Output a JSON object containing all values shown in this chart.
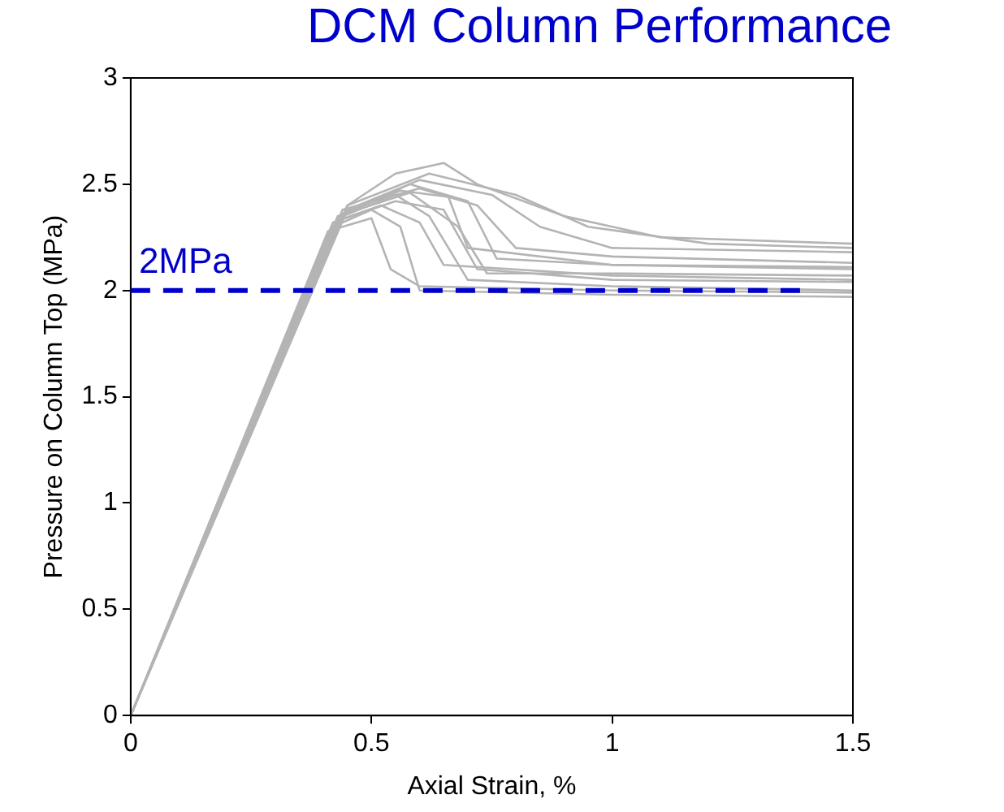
{
  "chart_data": {
    "type": "line",
    "title": "DCM Column Performance",
    "xlabel": "Axial Strain, %",
    "ylabel": "Pressure on Column Top (MPa)",
    "xlim": [
      0,
      1.5
    ],
    "xticks": [
      0,
      0.5,
      1,
      1.5
    ],
    "ylim": [
      0,
      3
    ],
    "yticks": [
      0,
      0.5,
      1,
      1.5,
      2,
      2.5,
      3
    ],
    "grid": false,
    "legend": false,
    "marker": "none",
    "line_style": "solid",
    "ref_lines": [
      {
        "axis": "y",
        "value": 2,
        "label": "2MPa",
        "color": "#0000cc",
        "line_style": "dashed"
      }
    ],
    "series": [
      {
        "color": "#b4b4b4",
        "x": [
          0,
          0.45,
          0.55,
          0.65,
          0.72,
          0.9,
          1.1,
          1.5
        ],
        "values": [
          0,
          2.4,
          2.55,
          2.6,
          2.5,
          2.35,
          2.25,
          2.22
        ]
      },
      {
        "color": "#b4b4b4",
        "x": [
          0,
          0.45,
          0.6,
          0.75,
          0.85,
          1.0,
          1.5
        ],
        "values": [
          0,
          2.38,
          2.52,
          2.45,
          2.3,
          2.2,
          2.18
        ]
      },
      {
        "color": "#b4b4b4",
        "x": [
          0,
          0.44,
          0.58,
          0.7,
          0.76,
          1.0,
          1.5
        ],
        "values": [
          0,
          2.36,
          2.5,
          2.42,
          2.15,
          2.12,
          2.1
        ]
      },
      {
        "color": "#b4b4b4",
        "x": [
          0,
          0.43,
          0.55,
          0.62,
          0.7,
          1.0,
          1.5
        ],
        "values": [
          0,
          2.34,
          2.45,
          2.35,
          2.05,
          2.02,
          2.0
        ]
      },
      {
        "color": "#b4b4b4",
        "x": [
          0,
          0.42,
          0.5,
          0.56,
          0.6,
          1.0,
          1.5
        ],
        "values": [
          0,
          2.3,
          2.38,
          2.3,
          2.0,
          1.98,
          1.97
        ]
      },
      {
        "color": "#b4b4b4",
        "x": [
          0,
          0.42,
          0.55,
          0.65,
          0.72,
          1.0,
          1.5
        ],
        "values": [
          0,
          2.32,
          2.42,
          2.38,
          2.1,
          2.05,
          2.04
        ]
      },
      {
        "color": "#b4b4b4",
        "x": [
          0,
          0.44,
          0.6,
          0.72,
          0.8,
          1.0,
          1.5
        ],
        "values": [
          0,
          2.38,
          2.48,
          2.4,
          2.2,
          2.16,
          2.13
        ]
      },
      {
        "color": "#b4b4b4",
        "x": [
          0,
          0.43,
          0.58,
          0.68,
          0.74,
          1.0,
          1.5
        ],
        "values": [
          0,
          2.35,
          2.46,
          2.3,
          2.08,
          2.08,
          2.07
        ]
      },
      {
        "color": "#b4b4b4",
        "x": [
          0,
          0.45,
          0.62,
          0.8,
          0.95,
          1.2,
          1.5
        ],
        "values": [
          0,
          2.4,
          2.55,
          2.45,
          2.3,
          2.22,
          2.2
        ]
      },
      {
        "color": "#b4b4b4",
        "x": [
          0,
          0.41,
          0.5,
          0.54,
          0.6,
          1.0,
          1.5
        ],
        "values": [
          0,
          2.28,
          2.34,
          2.1,
          2.02,
          2.0,
          1.99
        ]
      },
      {
        "color": "#b4b4b4",
        "x": [
          0,
          0.44,
          0.56,
          0.66,
          0.7,
          1.0,
          1.5
        ],
        "values": [
          0,
          2.36,
          2.47,
          2.44,
          2.2,
          2.12,
          2.11
        ]
      },
      {
        "color": "#b4b4b4",
        "x": [
          0,
          0.43,
          0.52,
          0.6,
          0.65,
          1.0,
          1.5
        ],
        "values": [
          0,
          2.33,
          2.4,
          2.32,
          2.12,
          2.07,
          2.05
        ]
      }
    ]
  }
}
